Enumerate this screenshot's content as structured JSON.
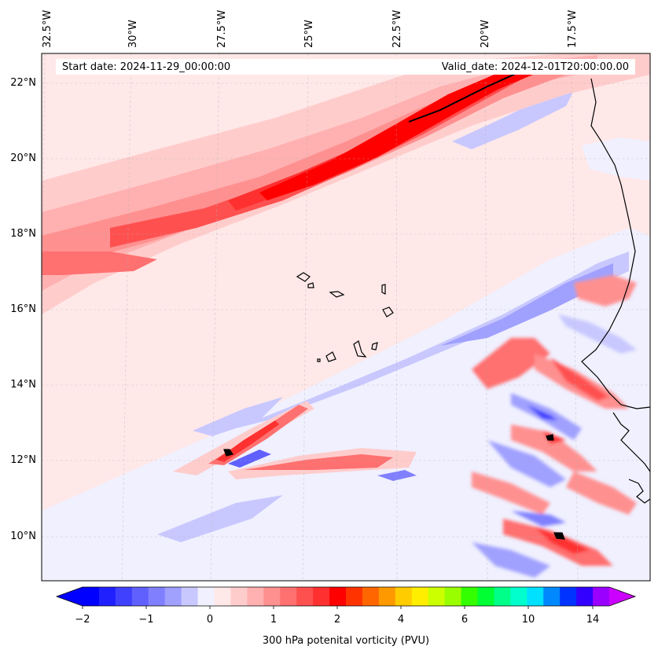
{
  "header": {
    "start_date": "Start date: 2024-11-29_00:00:00",
    "valid_date": "Valid_date: 2024-12-01T20:00:00.00"
  },
  "map": {
    "lon_labels": [
      "32.5°W",
      "30°W",
      "27.5°W",
      "25°W",
      "22.5°W",
      "20°W",
      "17.5°W"
    ],
    "lat_labels": [
      "22°N",
      "20°N",
      "18°N",
      "16°N",
      "14°N",
      "12°N",
      "10°N"
    ],
    "region": "Eastern tropical Atlantic, Cape Verde and West African coast",
    "field": "300 hPa potential vorticity"
  },
  "colorbar": {
    "label": "300 hPa potenital vorticity (PVU)",
    "tick_labels": [
      "−2",
      "−1",
      "0",
      "1",
      "2",
      "4",
      "6",
      "10",
      "14"
    ],
    "colors": [
      "#0000ff",
      "#2020ff",
      "#4040ff",
      "#6060ff",
      "#8080ff",
      "#a0a0ff",
      "#c8c8ff",
      "#f0f0ff",
      "#ffe8e8",
      "#ffcccc",
      "#ffb0b0",
      "#ff9090",
      "#ff7070",
      "#ff5050",
      "#ff3030",
      "#ff0000",
      "#ff3300",
      "#ff6600",
      "#ff9900",
      "#ffcc00",
      "#ffee00",
      "#ccff00",
      "#99ff00",
      "#33ff00",
      "#00ff33",
      "#00ff88",
      "#00ffcc",
      "#00e0ff",
      "#0088ff",
      "#0033ff",
      "#3300ff",
      "#9900ff"
    ],
    "under_color": "#0000ff",
    "over_color": "#cc00ff"
  }
}
